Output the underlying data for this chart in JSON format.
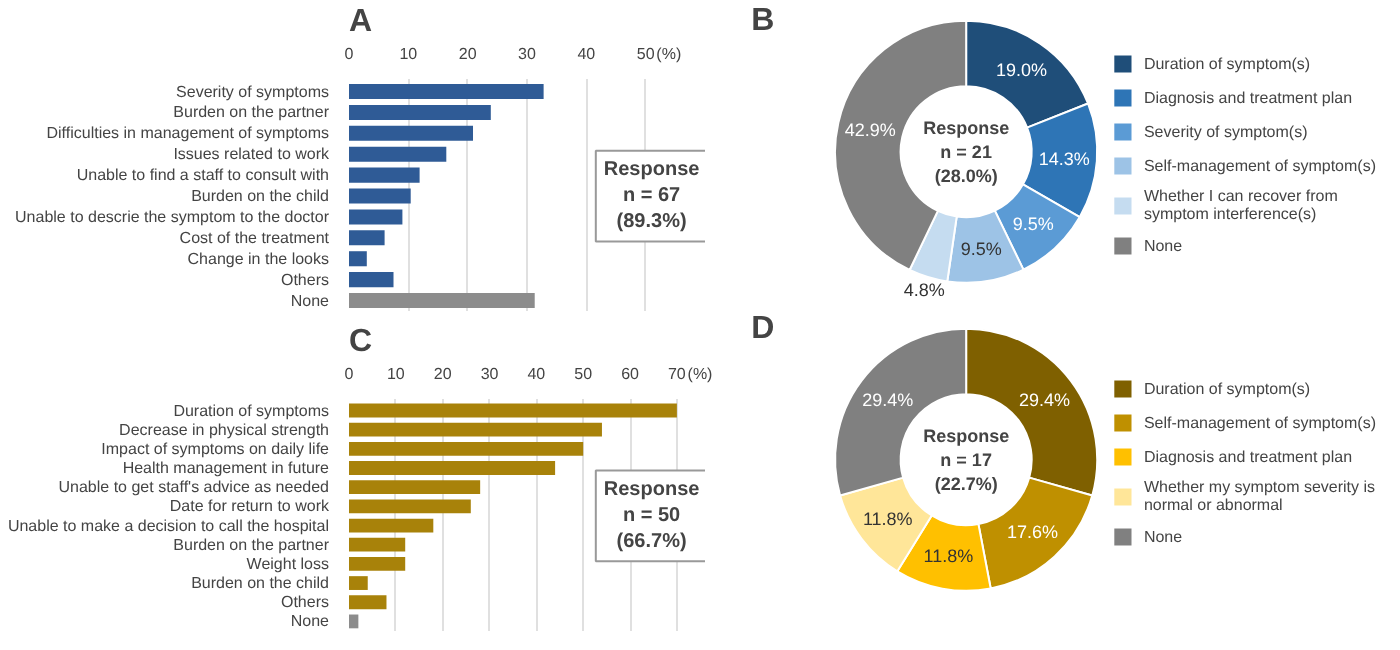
{
  "chart_data": [
    {
      "type": "bar",
      "orientation": "horizontal",
      "title": "A",
      "xlabel": "(%)",
      "categories": [
        "Severity of symptoms",
        "Burden on the partner",
        "Difficulties in management of symptoms",
        "Issues related to work",
        "Unable to find a staff to consult with",
        "Burden on the child",
        "Unable to descrie the symptom to the doctor",
        "Cost of the treatment",
        "Change in the looks",
        "Others",
        "None"
      ],
      "values": [
        32.8,
        23.9,
        20.9,
        16.4,
        11.9,
        10.4,
        9.0,
        6.0,
        3.0,
        7.5,
        31.3
      ],
      "colors": [
        "#2f5b96",
        "#2f5b96",
        "#2f5b96",
        "#2f5b96",
        "#2f5b96",
        "#2f5b96",
        "#2f5b96",
        "#2f5b96",
        "#2f5b96",
        "#2f5b96",
        "#8c8c8c"
      ],
      "xlim": [
        0,
        60
      ],
      "xticks": [
        0,
        10,
        20,
        30,
        40,
        50
      ],
      "grid": "x",
      "annotations": [
        "Response\nn = 67\n(89.3%)"
      ]
    },
    {
      "type": "donut",
      "title": "B",
      "categories": [
        "Duration of symptom(s)",
        "Diagnosis and treatment plan",
        "Severity of symptom(s)",
        "Self-management of symptom(s)",
        "Whether I can recover from symptom interference(s)",
        "None"
      ],
      "values": [
        19.0,
        14.3,
        9.5,
        9.5,
        4.8,
        42.9
      ],
      "value_labels": [
        "19.0%",
        "14.3%",
        "9.5%",
        "9.5%",
        "4.8%",
        "42.9%"
      ],
      "colors": [
        "#1f4e79",
        "#2e75b6",
        "#5b9bd5",
        "#9dc3e6",
        "#c5dcf0",
        "#808080"
      ],
      "legend": "right",
      "annotations": [
        "Response\nn = 21\n(28.0%)"
      ]
    },
    {
      "type": "bar",
      "orientation": "horizontal",
      "title": "C",
      "xlabel": "(%)",
      "categories": [
        "Duration of symptoms",
        "Decrease in physical strength",
        "Impact of symptoms on daily life",
        "Health management in future",
        "Unable to get staff's advice as needed",
        "Date for return to work",
        "Unable to make a decision to call the hospital",
        "Burden on the partner",
        "Weight loss",
        "Burden on the child",
        "Others",
        "None"
      ],
      "values": [
        70,
        54,
        50,
        44,
        28,
        26,
        18,
        12,
        12,
        4,
        8,
        2
      ],
      "colors": [
        "#a8820a",
        "#a8820a",
        "#a8820a",
        "#a8820a",
        "#a8820a",
        "#a8820a",
        "#a8820a",
        "#a8820a",
        "#a8820a",
        "#a8820a",
        "#a8820a",
        "#8c8c8c"
      ],
      "xlim": [
        0,
        76
      ],
      "xticks": [
        0,
        10,
        20,
        30,
        40,
        50,
        60,
        70
      ],
      "grid": "x",
      "annotations": [
        "Response\nn = 50\n(66.7%)"
      ]
    },
    {
      "type": "donut",
      "title": "D",
      "categories": [
        "Duration of symptom(s)",
        "Self-management of symptom(s)",
        "Diagnosis and treatment plan",
        "Whether my symptom severity is normal or abnormal",
        "None"
      ],
      "values": [
        29.4,
        17.6,
        11.8,
        11.8,
        29.4
      ],
      "value_labels": [
        "29.4%",
        "17.6%",
        "11.8%",
        "11.8%",
        "29.4%"
      ],
      "colors": [
        "#7f6000",
        "#bf9000",
        "#ffc000",
        "#ffe699",
        "#808080"
      ],
      "legend": "right",
      "annotations": [
        "Response\nn = 17\n(22.7%)"
      ]
    }
  ]
}
